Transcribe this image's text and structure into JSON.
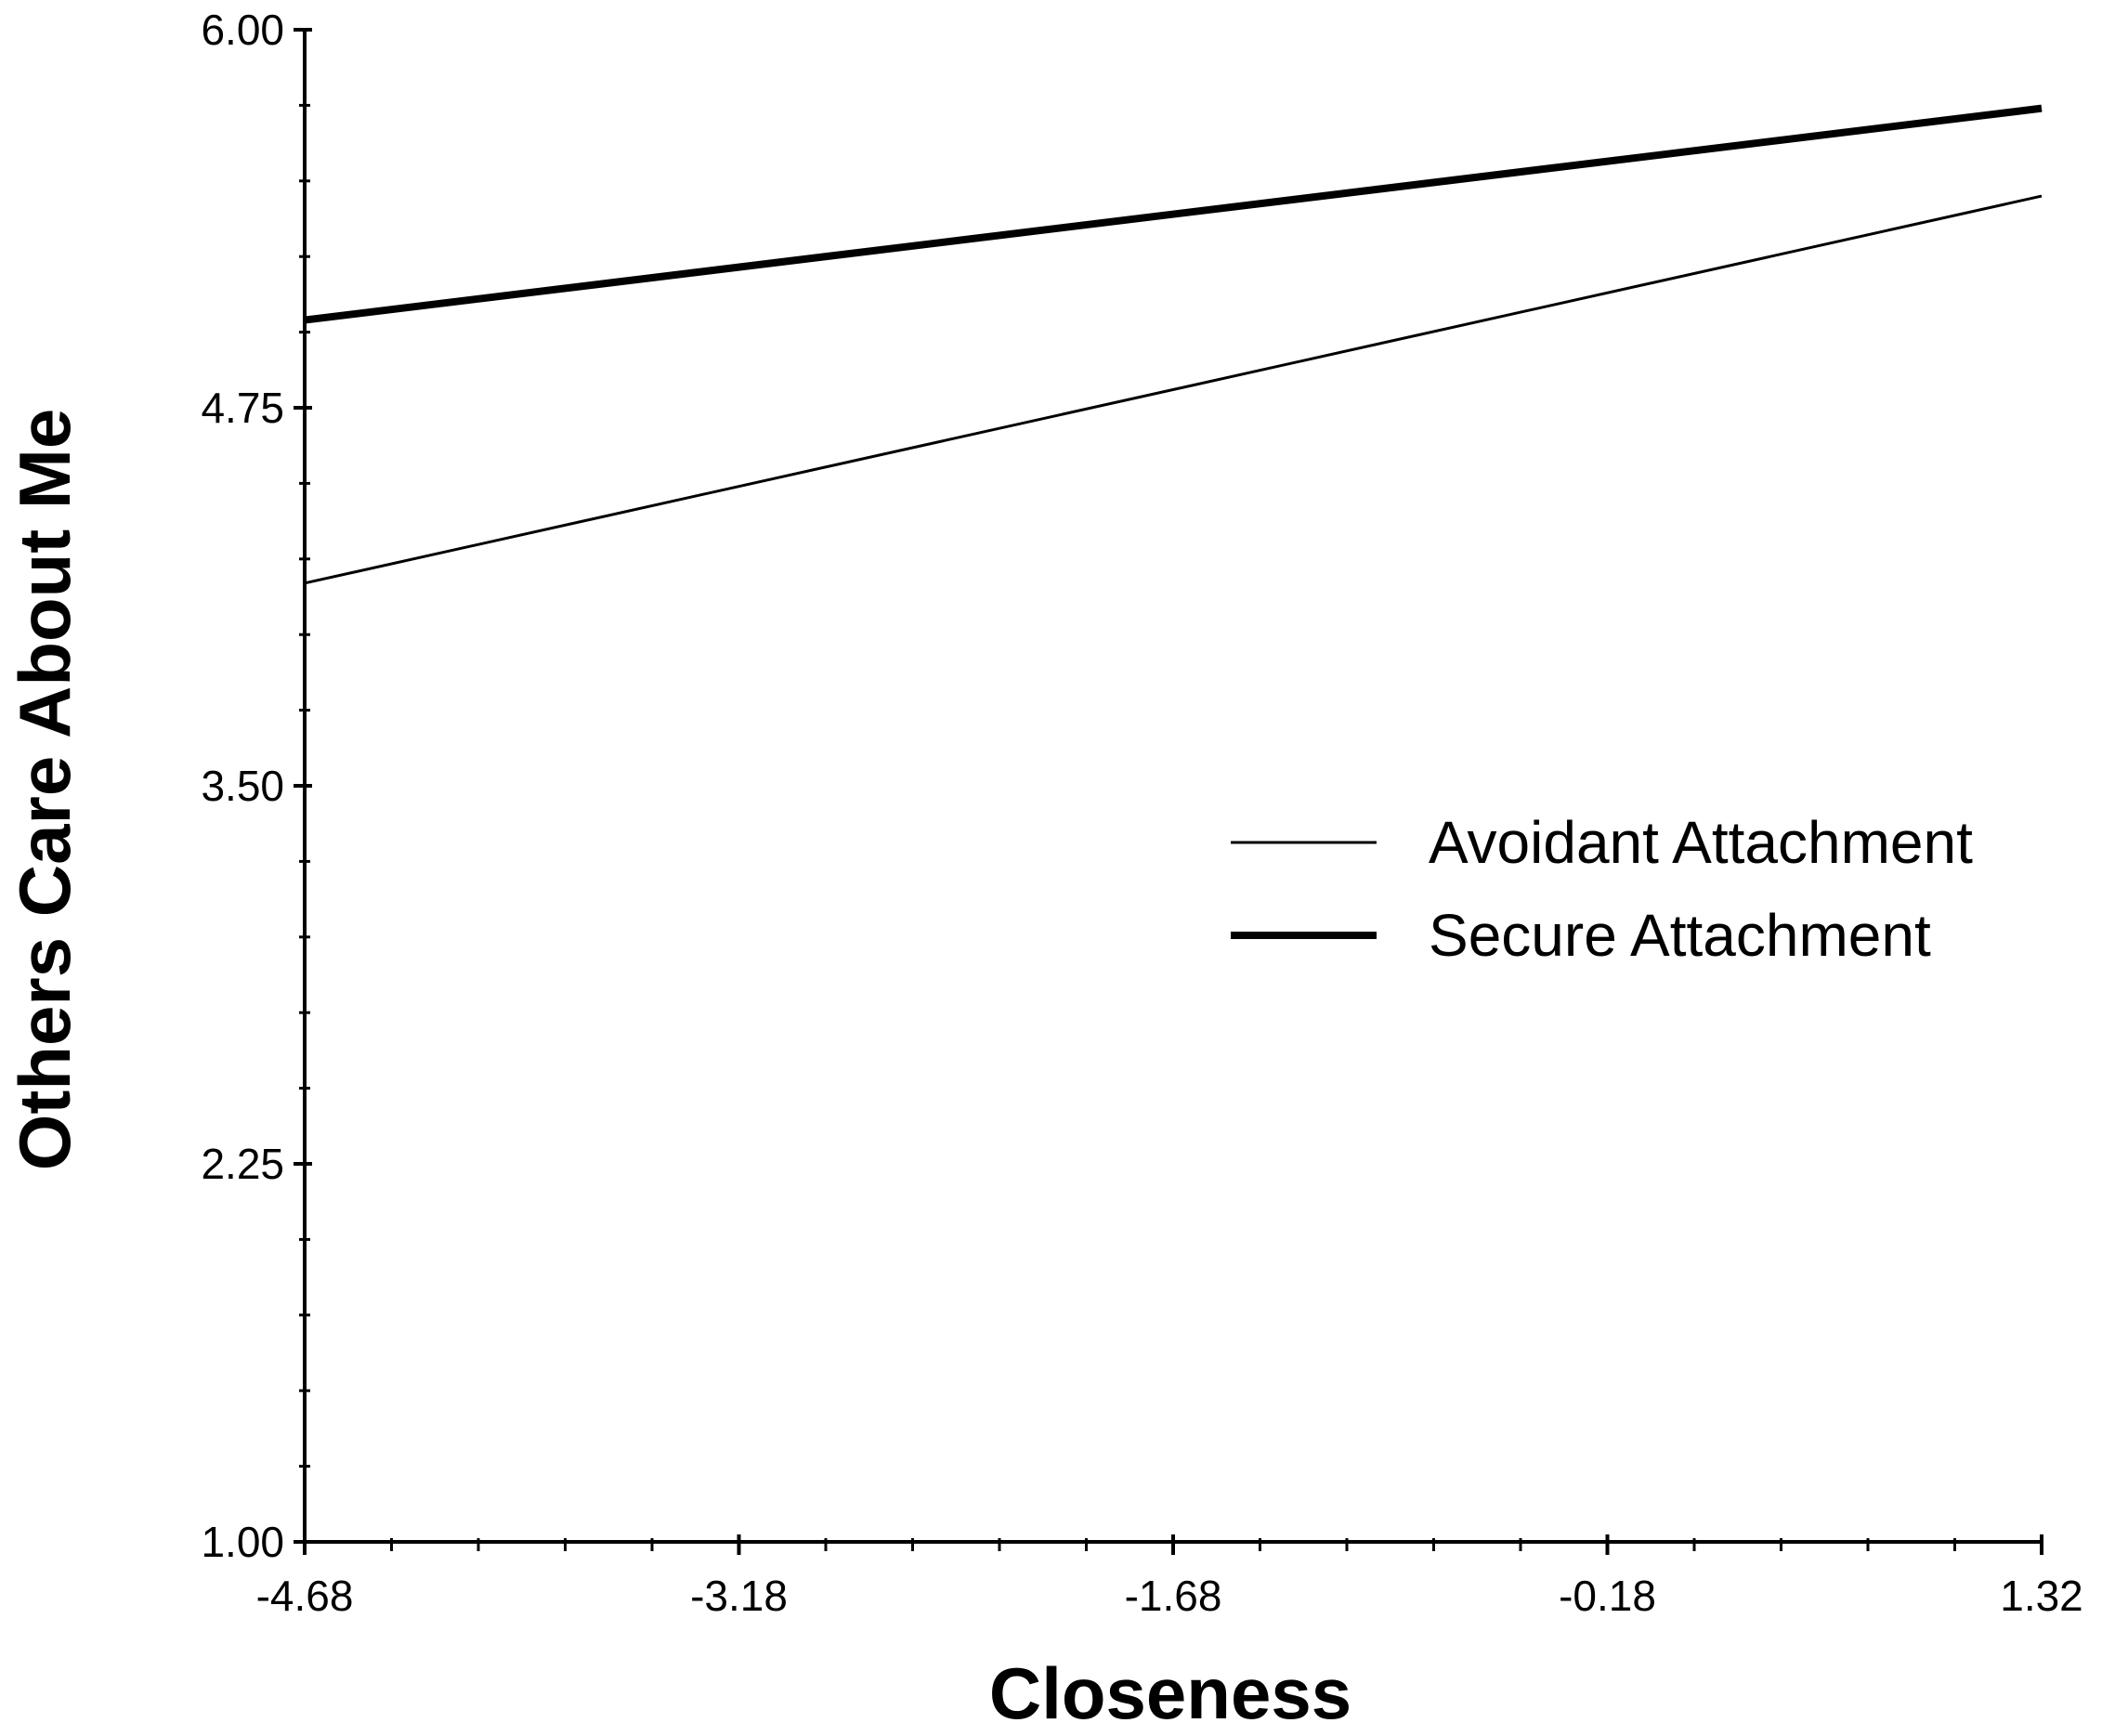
{
  "chart_data": {
    "type": "line",
    "title": "",
    "xlabel": "Closeness",
    "ylabel": "Others Care About Me",
    "xlim": [
      -4.68,
      1.32
    ],
    "ylim": [
      1.0,
      6.0
    ],
    "x_ticks": [
      "-4.68",
      "-3.18",
      "-1.68",
      "-0.18",
      "1.32"
    ],
    "y_ticks": [
      "1.00",
      "2.25",
      "3.50",
      "4.75",
      "6.00"
    ],
    "grid": false,
    "legend_position": "right",
    "series": [
      {
        "name": "Avoidant Attachment",
        "x": [
          -4.68,
          1.32
        ],
        "y": [
          4.17,
          5.45
        ],
        "line_weight": "thin",
        "color": "#000000"
      },
      {
        "name": "Secure Attachment",
        "x": [
          -4.68,
          1.32
        ],
        "y": [
          5.04,
          5.74
        ],
        "line_weight": "thick",
        "color": "#000000"
      }
    ]
  }
}
